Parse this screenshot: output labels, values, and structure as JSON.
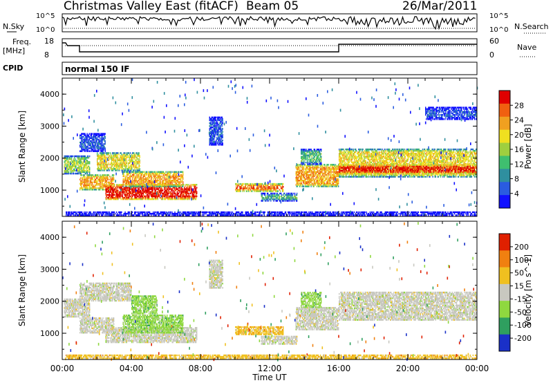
{
  "header": {
    "title": "Christmas Valley East (fitACF)",
    "beam": "Beam 05",
    "date": "26/Mar/2011"
  },
  "panels": {
    "nsky": {
      "label": "N.Sky",
      "right_label": "N.Search",
      "ticks": [
        "10^5",
        "10^0"
      ]
    },
    "freq": {
      "label_line1": "Freq.",
      "label_line2": "[MHz]",
      "ticks_left": [
        "18",
        "8"
      ],
      "ticks_right": [
        "60",
        "0"
      ],
      "right_label": "Nave"
    },
    "cpid": {
      "label": "CPID",
      "value": "normal 150 IF"
    }
  },
  "colors": {
    "power": [
      "#1010ff",
      "#2a5ce0",
      "#2f8f9f",
      "#3fbf6f",
      "#9fcf3f",
      "#f0e020",
      "#f0a020",
      "#f06010",
      "#e00000"
    ],
    "velocity": [
      "#1a30c8",
      "#2f9f5f",
      "#8fd83f",
      "#c8c8c0",
      "#f0c020",
      "#f08010",
      "#e02000"
    ]
  },
  "chart_data": [
    {
      "type": "heatmap",
      "name": "Power",
      "ylabel": "Slant Range [km]",
      "colorbar_label": "Power [dB]",
      "colorbar_ticks": [
        "28",
        "24",
        "20",
        "16",
        "12",
        "8",
        "4"
      ],
      "yticks": [
        "4000",
        "3000",
        "2000",
        "1000"
      ],
      "ylim": [
        180,
        4500
      ],
      "xlim_hours": [
        0,
        24
      ],
      "regions": [
        {
          "t0": 0.1,
          "t1": 1.6,
          "r0": 1500,
          "r1": 2100,
          "level": 4
        },
        {
          "t0": 1.0,
          "t1": 3.0,
          "r0": 1000,
          "r1": 1500,
          "level": 6
        },
        {
          "t0": 2.5,
          "t1": 7.8,
          "r0": 700,
          "r1": 1200,
          "level": 8
        },
        {
          "t0": 3.5,
          "t1": 7.0,
          "r0": 1100,
          "r1": 1600,
          "level": 6
        },
        {
          "t0": 2.0,
          "t1": 4.5,
          "r0": 1600,
          "r1": 2200,
          "level": 5
        },
        {
          "t0": 1.0,
          "t1": 2.5,
          "r0": 2200,
          "r1": 2800,
          "level": 1
        },
        {
          "t0": 10.0,
          "t1": 12.8,
          "r0": 950,
          "r1": 1200,
          "level": 7
        },
        {
          "t0": 11.5,
          "t1": 13.6,
          "r0": 650,
          "r1": 900,
          "level": 3
        },
        {
          "t0": 13.5,
          "t1": 16.0,
          "r0": 1100,
          "r1": 1800,
          "level": 6
        },
        {
          "t0": 13.8,
          "t1": 15.0,
          "r0": 1800,
          "r1": 2300,
          "level": 3
        },
        {
          "t0": 16.0,
          "t1": 24.0,
          "r0": 1400,
          "r1": 2300,
          "level": 5
        },
        {
          "t0": 16.0,
          "t1": 24.0,
          "r0": 1500,
          "r1": 1800,
          "level": 8
        },
        {
          "t0": 21.0,
          "t1": 24.0,
          "r0": 3200,
          "r1": 3600,
          "level": 1
        },
        {
          "t0": 8.5,
          "t1": 9.3,
          "r0": 2400,
          "r1": 3300,
          "level": 1
        },
        {
          "t0": 0.2,
          "t1": 24.0,
          "r0": 200,
          "r1": 350,
          "level": 1
        }
      ]
    },
    {
      "type": "heatmap",
      "name": "Velocity",
      "ylabel": "Slant Range [km]",
      "colorbar_label": "Velocity [m s^-1]",
      "colorbar_ticks": [
        "200",
        "100",
        "50",
        "15",
        "-15",
        "-50",
        "-100",
        "-200"
      ],
      "yticks": [
        "4000",
        "3000",
        "2000",
        "1000"
      ],
      "ylim": [
        180,
        4500
      ],
      "xlim_hours": [
        0,
        24
      ],
      "xticks": [
        "00:00",
        "04:00",
        "08:00",
        "12:00",
        "16:00",
        "20:00",
        "00:00"
      ],
      "xlabel": "Time UT",
      "regions": [
        {
          "t0": 0.1,
          "t1": 1.6,
          "r0": 1500,
          "r1": 2100,
          "level": 3
        },
        {
          "t0": 1.0,
          "t1": 3.0,
          "r0": 1000,
          "r1": 1500,
          "level": 3
        },
        {
          "t0": 2.5,
          "t1": 7.8,
          "r0": 700,
          "r1": 1200,
          "level": 3
        },
        {
          "t0": 3.5,
          "t1": 7.0,
          "r0": 1000,
          "r1": 1600,
          "level": 2
        },
        {
          "t0": 4.0,
          "t1": 5.5,
          "r0": 1600,
          "r1": 2200,
          "level": 2
        },
        {
          "t0": 1.0,
          "t1": 4.0,
          "r0": 2000,
          "r1": 2600,
          "level": 3
        },
        {
          "t0": 10.0,
          "t1": 12.8,
          "r0": 950,
          "r1": 1200,
          "level": 4
        },
        {
          "t0": 11.5,
          "t1": 13.6,
          "r0": 650,
          "r1": 900,
          "level": 3
        },
        {
          "t0": 13.5,
          "t1": 16.0,
          "r0": 1100,
          "r1": 1800,
          "level": 3
        },
        {
          "t0": 13.8,
          "t1": 15.0,
          "r0": 1800,
          "r1": 2300,
          "level": 2
        },
        {
          "t0": 16.0,
          "t1": 24.0,
          "r0": 1400,
          "r1": 2300,
          "level": 3
        },
        {
          "t0": 8.5,
          "t1": 9.3,
          "r0": 2400,
          "r1": 3300,
          "level": 3
        },
        {
          "t0": 0.2,
          "t1": 24.0,
          "r0": 200,
          "r1": 350,
          "level": 4
        }
      ]
    }
  ]
}
